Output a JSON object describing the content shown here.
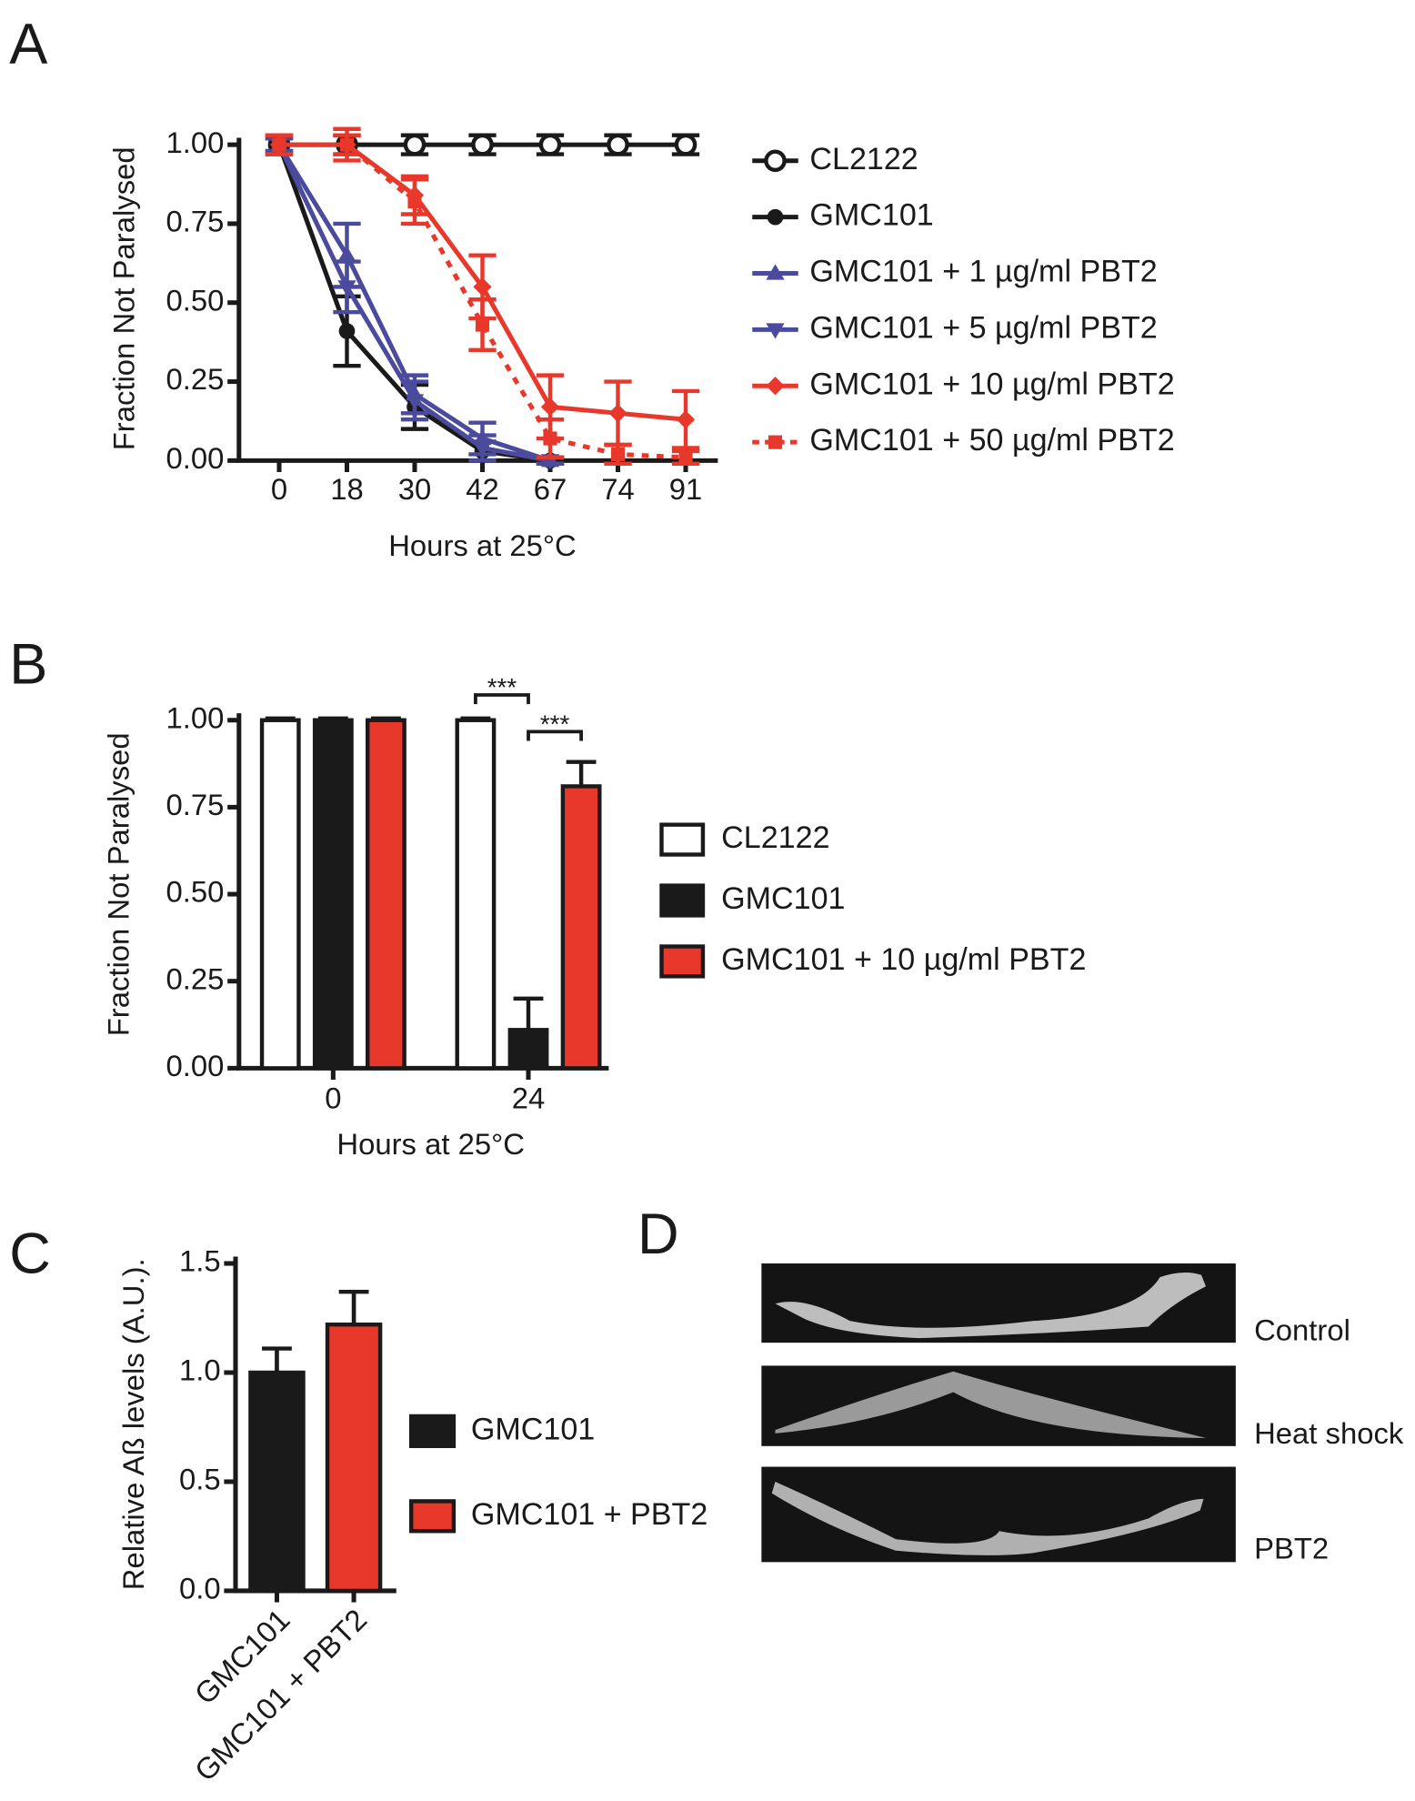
{
  "chart_data": [
    {
      "type": "line",
      "panel_label": "A",
      "xlabel": "Hours at 25°C",
      "ylabel": "Fraction Not Paralysed",
      "categories": [
        "0",
        "18",
        "30",
        "42",
        "67",
        "74",
        "91"
      ],
      "ylim": [
        0,
        1
      ],
      "yticks": [
        {
          "value": 0,
          "label": "0.00"
        },
        {
          "value": 0.25,
          "label": "0.25"
        },
        {
          "value": 0.5,
          "label": "0.50"
        },
        {
          "value": 0.75,
          "label": "0.75"
        },
        {
          "value": 1,
          "label": "1.00"
        }
      ],
      "series": [
        {
          "name": "CL2122",
          "color": "#1a1a1a",
          "marker": "open-circle",
          "linestyle": "solid",
          "values": [
            1,
            1,
            1,
            1,
            1,
            1,
            1
          ],
          "errors": [
            0.03,
            0.03,
            0.03,
            0.03,
            0.03,
            0.03,
            0.03
          ]
        },
        {
          "name": "GMC101",
          "color": "#1a1a1a",
          "marker": "circle",
          "linestyle": "solid",
          "values": [
            1,
            0.41,
            0.17,
            0.03,
            0,
            null,
            null
          ],
          "errors": [
            0.02,
            0.11,
            0.07,
            0.03,
            0.01,
            null,
            null
          ]
        },
        {
          "name": "GMC101 + 1 µg/ml PBT2",
          "color": "#4b4b9e",
          "marker": "triangle-up",
          "linestyle": "solid",
          "values": [
            1,
            0.65,
            0.21,
            0.07,
            0,
            null,
            null
          ],
          "errors": [
            0.02,
            0.1,
            0.06,
            0.05,
            0.01,
            null,
            null
          ]
        },
        {
          "name": "GMC101 + 5 µg/ml PBT2",
          "color": "#4b4b9e",
          "marker": "triangle-down",
          "linestyle": "solid",
          "values": [
            1,
            0.55,
            0.19,
            0.04,
            0,
            null,
            null
          ],
          "errors": [
            0.02,
            0.08,
            0.06,
            0.04,
            0.01,
            null,
            null
          ]
        },
        {
          "name": "GMC101 + 10 µg/ml PBT2",
          "color": "#e8382b",
          "marker": "diamond",
          "linestyle": "solid",
          "values": [
            1,
            1,
            0.84,
            0.55,
            0.17,
            0.15,
            0.13
          ],
          "errors": [
            0.03,
            0.03,
            0.06,
            0.1,
            0.1,
            0.1,
            0.09
          ]
        },
        {
          "name": "GMC101 + 50 µg/ml PBT2",
          "color": "#e8382b",
          "marker": "square",
          "linestyle": "dotted",
          "values": [
            1,
            1,
            0.82,
            0.43,
            0.07,
            0.02,
            0.01
          ],
          "errors": [
            0.03,
            0.05,
            0.07,
            0.08,
            0.06,
            0.03,
            0.02
          ]
        }
      ]
    },
    {
      "type": "bar",
      "panel_label": "B",
      "xlabel": "Hours at 25°C",
      "ylabel": "Fraction Not Paralysed",
      "categories": [
        "0",
        "24"
      ],
      "ylim": [
        0,
        1
      ],
      "yticks": [
        {
          "value": 0,
          "label": "0.00"
        },
        {
          "value": 0.25,
          "label": "0.25"
        },
        {
          "value": 0.5,
          "label": "0.50"
        },
        {
          "value": 0.75,
          "label": "0.75"
        },
        {
          "value": 1,
          "label": "1.00"
        }
      ],
      "series": [
        {
          "name": "CL2122",
          "color": "#ffffff",
          "values": [
            1,
            1
          ],
          "errors": [
            0.005,
            0.005
          ]
        },
        {
          "name": "GMC101",
          "color": "#1a1a1a",
          "values": [
            1,
            0.11
          ],
          "errors": [
            0.005,
            0.09
          ]
        },
        {
          "name": "GMC101 + 10 µg/ml PBT2",
          "color": "#e8382b",
          "values": [
            1,
            0.81
          ],
          "errors": [
            0.005,
            0.07
          ]
        }
      ],
      "annotations": [
        "***",
        "***"
      ]
    },
    {
      "type": "bar",
      "panel_label": "C",
      "ylabel": "Relative Aß levels (A.U.).",
      "categories": [
        "GMC101",
        "GMC101 + PBT2"
      ],
      "values": [
        1,
        1.22
      ],
      "errors": [
        0.11,
        0.15
      ],
      "colors": [
        "#1a1a1a",
        "#e8382b"
      ],
      "ylim": [
        0,
        1.5
      ],
      "yticks": [
        {
          "value": 0,
          "label": "0.0"
        },
        {
          "value": 0.5,
          "label": "0.5"
        },
        {
          "value": 1,
          "label": "1.0"
        },
        {
          "value": 1.5,
          "label": "1.5"
        }
      ]
    }
  ],
  "panel_d": {
    "panel_label": "D",
    "labels": [
      "Control",
      "Heat shock",
      "PBT2"
    ]
  }
}
